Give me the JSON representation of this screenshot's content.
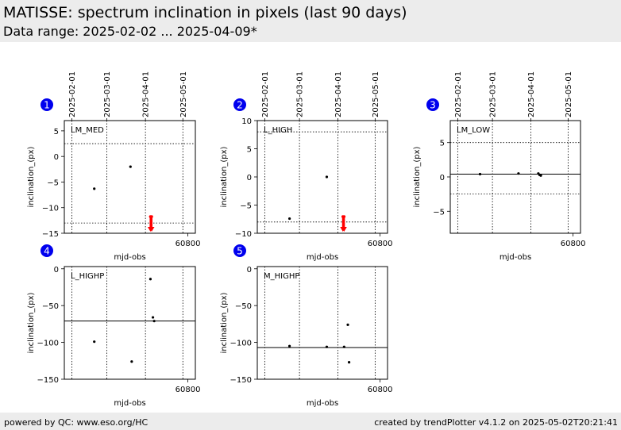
{
  "header": {
    "title": "MATISSE: spectrum inclination in pixels (last 90 days)",
    "subtitle": "Data range: 2025-02-02 ... 2025-04-09*"
  },
  "footer": {
    "left": "powered by QC: www.eso.org/HC",
    "right": "created by trendPlotter v4.1.2 on 2025-05-02T20:21:41"
  },
  "colors": {
    "marker": "#0000ee",
    "data": "#000000",
    "outlier": "#ff0000",
    "header_bg": "#ececec"
  },
  "chart_data": [
    {
      "type": "scatter",
      "number": "1",
      "label": "LM_MED",
      "xlabel": "mjd-obs",
      "ylabel": "inclination_(px)",
      "xlim": [
        60701,
        60806
      ],
      "ylim": [
        -15,
        7
      ],
      "xticks": [
        60800
      ],
      "yticks": [
        5,
        0,
        -5,
        -10,
        -15
      ],
      "date_ticks": [
        {
          "label": "2025-02-01",
          "x": 60707
        },
        {
          "label": "2025-03-01",
          "x": 60735
        },
        {
          "label": "2025-04-01",
          "x": 60766
        },
        {
          "label": "2025-05-01",
          "x": 60796
        }
      ],
      "hlines_dotted": [
        2.5,
        -13
      ],
      "hlines_solid": [],
      "points": [
        {
          "x": 60725,
          "y": -6.3
        },
        {
          "x": 60754,
          "y": -2
        }
      ],
      "outliers_x": [
        60770,
        60771
      ]
    },
    {
      "type": "scatter",
      "number": "2",
      "label": "L_HIGH",
      "xlabel": "mjd-obs",
      "ylabel": "inclination_(px)",
      "xlim": [
        60701,
        60806
      ],
      "ylim": [
        -10,
        10
      ],
      "xticks": [
        60800
      ],
      "yticks": [
        10,
        5,
        0,
        -5,
        -10
      ],
      "date_ticks": [
        {
          "label": "2025-02-01",
          "x": 60707
        },
        {
          "label": "2025-03-01",
          "x": 60735
        },
        {
          "label": "2025-04-01",
          "x": 60766
        },
        {
          "label": "2025-05-01",
          "x": 60796
        }
      ],
      "hlines_dotted": [
        8,
        -8
      ],
      "hlines_solid": [],
      "points": [
        {
          "x": 60727,
          "y": -7.4
        },
        {
          "x": 60757,
          "y": 0
        }
      ],
      "outliers_x": [
        60770,
        60771
      ]
    },
    {
      "type": "scatter",
      "number": "3",
      "label": "LM_LOW",
      "xlabel": "mjd-obs",
      "ylabel": "inclination_(px)",
      "xlim": [
        60701,
        60806
      ],
      "ylim": [
        -8.2,
        8.2
      ],
      "xticks": [
        60800
      ],
      "yticks": [
        5,
        0,
        -5
      ],
      "date_ticks": [
        {
          "label": "2025-02-01",
          "x": 60707
        },
        {
          "label": "2025-03-01",
          "x": 60735
        },
        {
          "label": "2025-04-01",
          "x": 60766
        },
        {
          "label": "2025-05-01",
          "x": 60796
        }
      ],
      "hlines_dotted": [
        5,
        -2.5
      ],
      "hlines_solid": [
        0.4
      ],
      "points": [
        {
          "x": 60725,
          "y": 0.4
        },
        {
          "x": 60756,
          "y": 0.5
        },
        {
          "x": 60772,
          "y": 0.5
        },
        {
          "x": 60773,
          "y": 0.3
        },
        {
          "x": 60774,
          "y": 0.2
        }
      ],
      "outliers_x": []
    },
    {
      "type": "scatter",
      "number": "4",
      "label": "L_HIGHP",
      "xlabel": "mjd-obs",
      "ylabel": "inclination_(px)",
      "xlim": [
        60701,
        60806
      ],
      "ylim": [
        -150,
        3
      ],
      "xticks": [
        60800
      ],
      "yticks": [
        0,
        -50,
        -100,
        -150
      ],
      "date_ticks": [
        {
          "label": "2025-02-01",
          "x": 60707
        },
        {
          "label": "2025-03-01",
          "x": 60735
        },
        {
          "label": "2025-04-01",
          "x": 60766
        },
        {
          "label": "2025-05-01",
          "x": 60796
        }
      ],
      "hlines_dotted": [],
      "hlines_solid": [
        -71
      ],
      "points": [
        {
          "x": 60725,
          "y": -99
        },
        {
          "x": 60755,
          "y": -126
        },
        {
          "x": 60770,
          "y": -14
        },
        {
          "x": 60772,
          "y": -66
        },
        {
          "x": 60773,
          "y": -71
        }
      ],
      "outliers_x": []
    },
    {
      "type": "scatter",
      "number": "5",
      "label": "M_HIGHP",
      "xlabel": "mjd-obs",
      "ylabel": "inclination_(px)",
      "xlim": [
        60701,
        60806
      ],
      "ylim": [
        -150,
        3
      ],
      "xticks": [
        60800
      ],
      "yticks": [
        0,
        -50,
        -100,
        -150
      ],
      "date_ticks": [
        {
          "label": "2025-02-01",
          "x": 60707
        },
        {
          "label": "2025-03-01",
          "x": 60735
        },
        {
          "label": "2025-04-01",
          "x": 60766
        },
        {
          "label": "2025-05-01",
          "x": 60796
        }
      ],
      "hlines_dotted": [],
      "hlines_solid": [
        -107
      ],
      "points": [
        {
          "x": 60727,
          "y": -105
        },
        {
          "x": 60757,
          "y": -106
        },
        {
          "x": 60771,
          "y": -106
        },
        {
          "x": 60774,
          "y": -76
        },
        {
          "x": 60775,
          "y": -127
        }
      ],
      "outliers_x": []
    }
  ]
}
